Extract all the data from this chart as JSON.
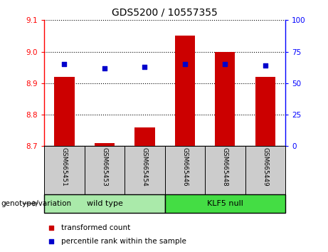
{
  "title": "GDS5200 / 10557355",
  "samples": [
    "GSM665451",
    "GSM665453",
    "GSM665454",
    "GSM665446",
    "GSM665448",
    "GSM665449"
  ],
  "transformed_counts": [
    8.92,
    8.71,
    8.76,
    9.05,
    9.0,
    8.92
  ],
  "percentile_ranks": [
    65,
    62,
    63,
    65,
    65,
    64
  ],
  "ylim_left": [
    8.7,
    9.1
  ],
  "ylim_right": [
    0,
    100
  ],
  "yticks_left": [
    8.7,
    8.8,
    8.9,
    9.0,
    9.1
  ],
  "yticks_right": [
    0,
    25,
    50,
    75,
    100
  ],
  "bar_color": "#cc0000",
  "dot_color": "#0000cc",
  "wildtype_color": "#aaeaaa",
  "klf5_color": "#44dd44",
  "group_bg_color": "#cccccc",
  "legend_bar_label": "transformed count",
  "legend_dot_label": "percentile rank within the sample",
  "genotype_label": "genotype/variation",
  "group_labels": [
    "wild type",
    "KLF5 null"
  ],
  "bar_bottom": 8.7,
  "bar_width": 0.5
}
